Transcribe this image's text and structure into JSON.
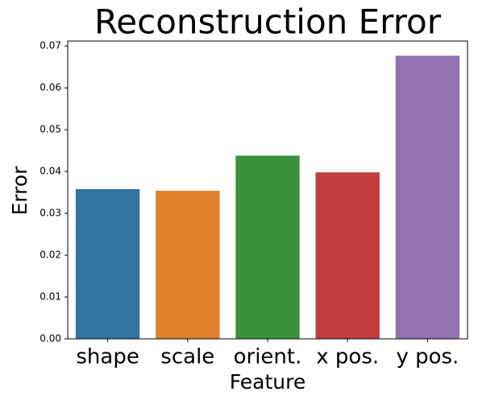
{
  "chart_data": {
    "type": "bar",
    "title": "Reconstruction Error",
    "x_label": "Feature",
    "y_label": "Error",
    "categories": [
      "shape",
      "scale",
      "orient.",
      "x pos.",
      "y pos."
    ],
    "values": [
      0.0358,
      0.0354,
      0.0438,
      0.0398,
      0.0677
    ],
    "colors": [
      "#3274a1",
      "#e1812c",
      "#3a923a",
      "#c03d3e",
      "#9372b2"
    ],
    "ylim": [
      0,
      0.0712
    ],
    "yticks": [
      {
        "value": 0,
        "label": "0.00"
      },
      0.01,
      0.02,
      0.03,
      0.04,
      0.05,
      0.06,
      0.07
    ],
    "grid": false
  }
}
